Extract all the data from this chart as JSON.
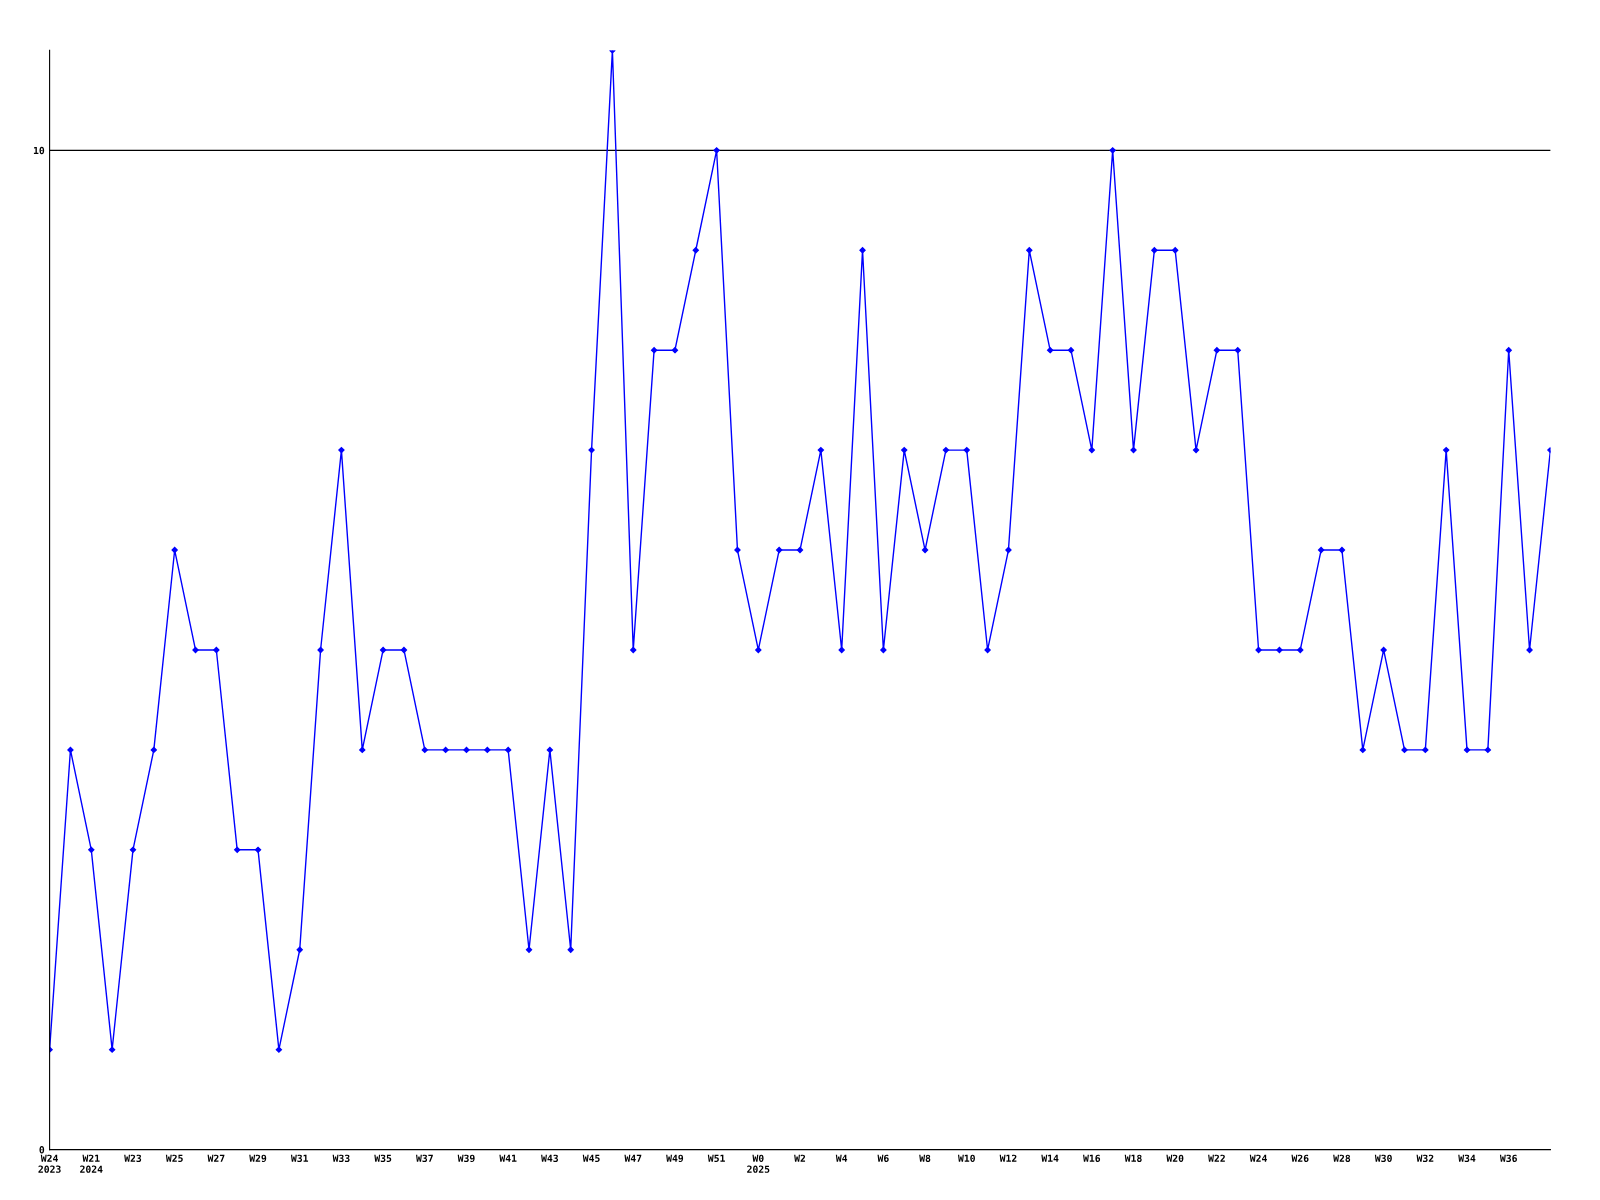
{
  "chart_data": {
    "type": "line",
    "categories": [
      "W24\n2023",
      null,
      "W21\n2024",
      null,
      "W23",
      null,
      "W25",
      null,
      "W27",
      null,
      "W29",
      null,
      "W31",
      null,
      "W33",
      null,
      "W35",
      null,
      "W37",
      null,
      "W39",
      null,
      "W41",
      null,
      "W43",
      null,
      "W45",
      null,
      "W47",
      null,
      "W49",
      null,
      "W51",
      null,
      "W0\n2025",
      null,
      "W2",
      null,
      "W4",
      null,
      "W6",
      null,
      "W8",
      null,
      "W10",
      null,
      "W12",
      null,
      "W14",
      null,
      "W16",
      null,
      "W18",
      null,
      "W20",
      null,
      "W22",
      null,
      "W24",
      null,
      "W26",
      null,
      "W28",
      null,
      "W30",
      null,
      "W32",
      null,
      "W34",
      null,
      "W36",
      null,
      null
    ],
    "series": [
      {
        "color": "#0000ff",
        "values": [
          1,
          4,
          3,
          1,
          3,
          4,
          6,
          5,
          5,
          3,
          3,
          1,
          2,
          5,
          7,
          4,
          5,
          5,
          4,
          4,
          4,
          4,
          4,
          2,
          4,
          2,
          7,
          11,
          5,
          8,
          8,
          9,
          10,
          6,
          5,
          6,
          6,
          7,
          5,
          9,
          5,
          7,
          6,
          7,
          7,
          5,
          6,
          9,
          8,
          8,
          7,
          10,
          7,
          9,
          9,
          7,
          8,
          8,
          5,
          5,
          5,
          6,
          6,
          4,
          5,
          4,
          4,
          7,
          4,
          4,
          8,
          5,
          7
        ]
      }
    ],
    "ylim": [
      0,
      11
    ],
    "yticks": [
      0,
      10
    ],
    "grid": "y",
    "marker": "diamond",
    "line_style": "solid",
    "legend": false
  }
}
